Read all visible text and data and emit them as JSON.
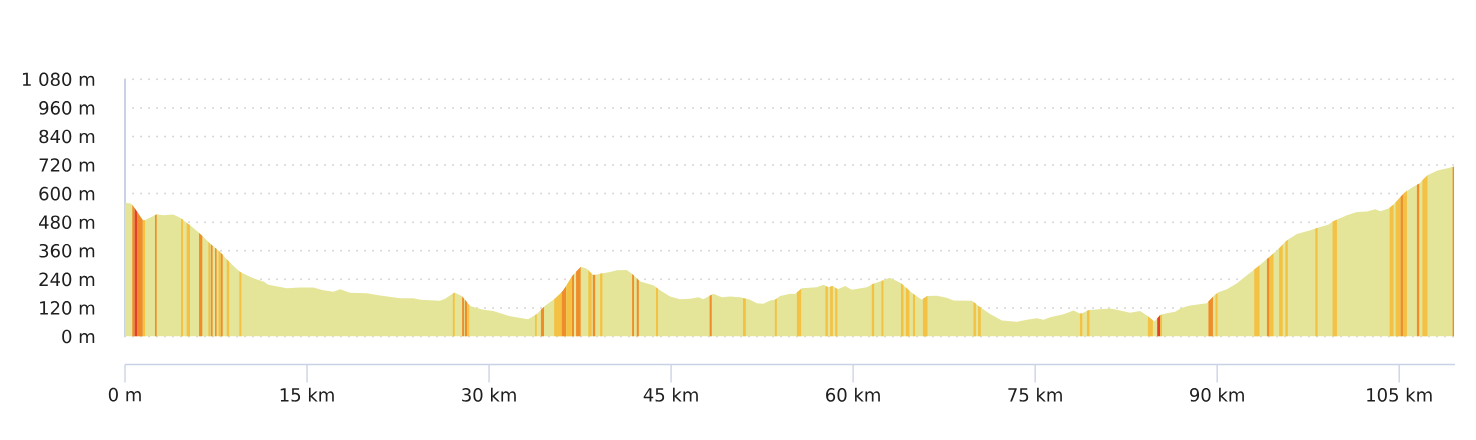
{
  "chart_data": {
    "type": "area",
    "xlim": [
      0,
      109.6
    ],
    "ylim": [
      0,
      1080
    ],
    "xticks": [
      {
        "value": 0,
        "label": "0 m"
      },
      {
        "value": 15,
        "label": "15 km"
      },
      {
        "value": 30,
        "label": "30 km"
      },
      {
        "value": 45,
        "label": "45 km"
      },
      {
        "value": 60,
        "label": "60 km"
      },
      {
        "value": 75,
        "label": "75 km"
      },
      {
        "value": 90,
        "label": "90 km"
      },
      {
        "value": 105,
        "label": "105 km"
      }
    ],
    "yticks": [
      {
        "value": 0,
        "label": "0 m"
      },
      {
        "value": 120,
        "label": "120 m"
      },
      {
        "value": 240,
        "label": "240 m"
      },
      {
        "value": 360,
        "label": "360 m"
      },
      {
        "value": 480,
        "label": "480 m"
      },
      {
        "value": 600,
        "label": "600 m"
      },
      {
        "value": 720,
        "label": "720 m"
      },
      {
        "value": 840,
        "label": "840 m"
      },
      {
        "value": 960,
        "label": "960 m"
      },
      {
        "value": 1080,
        "label": "1 080 m"
      }
    ],
    "grid": "y",
    "series": [
      {
        "color": "#e5e599",
        "x": [
          0,
          0.47,
          0.68,
          1.51,
          2.61,
          3.16,
          3.98,
          4.53,
          5.36,
          6.18,
          7.01,
          7.83,
          8.65,
          9.48,
          10.57,
          11.4,
          11.81,
          13.33,
          14.42,
          15.52,
          16.34,
          17.17,
          17.72,
          18.54,
          19.92,
          21.02,
          22.67,
          23.76,
          24.31,
          25.96,
          26.37,
          27.14,
          27.75,
          28.43,
          29.53,
          30.35,
          31.73,
          33.22,
          33.93,
          34.62,
          35.58,
          36.13,
          36.82,
          37.56,
          38.05,
          38.6,
          39.15,
          39.97,
          40.53,
          41.35,
          41.89,
          42.45,
          43.54,
          44.09,
          44.92,
          45.74,
          46.57,
          47.25,
          47.66,
          48.22,
          48.49,
          49.18,
          49.86,
          50.69,
          51.51,
          52.06,
          52.61,
          53.16,
          53.57,
          53.98,
          54.81,
          55.22,
          55.77,
          57.01,
          57.56,
          57.97,
          58.33,
          58.74,
          59.34,
          59.89,
          61.13,
          61.67,
          62.5,
          62.99,
          63.6,
          64.01,
          64.7,
          65.66,
          66.07,
          66.9,
          67.72,
          68.27,
          69.79,
          70.47,
          71.29,
          72.26,
          73.49,
          74.32,
          75.14,
          75.69,
          76.24,
          77.34,
          78.16,
          78.77,
          79.4,
          80.36,
          81.18,
          81.73,
          82.83,
          83.65,
          84.21,
          84.83,
          85.3,
          85.85,
          86.54,
          87.09,
          87.78,
          89.15,
          89.7,
          90.11,
          90.8,
          91.63,
          92.45,
          93.28,
          94.1,
          94.92,
          95.75,
          96.57,
          97.67,
          98.49,
          99.18,
          99.59,
          100.69,
          101.52,
          102.34,
          103.03,
          103.44,
          104.12,
          104.54,
          105.36,
          106.05,
          106.66,
          107.33,
          108.15,
          108.98,
          109.52
        ],
        "values": [
          562,
          558,
          548,
          485,
          513,
          509,
          512,
          499,
          467,
          432,
          390,
          355,
          310,
          271,
          245,
          231,
          217,
          203,
          206,
          206,
          194,
          188,
          198,
          184,
          182,
          172,
          161,
          161,
          154,
          150,
          158,
          185,
          170,
          128,
          112,
          107,
          85,
          72,
          95,
          129,
          165,
          194,
          252,
          293,
          285,
          257,
          264,
          271,
          278,
          279,
          258,
          231,
          215,
          194,
          168,
          156,
          158,
          165,
          156,
          172,
          180,
          165,
          168,
          165,
          154,
          140,
          137,
          151,
          154,
          170,
          180,
          178,
          203,
          207,
          217,
          207,
          212,
          198,
          212,
          196,
          207,
          222,
          236,
          247,
          233,
          222,
          189,
          154,
          170,
          171,
          163,
          151,
          150,
          123,
          95,
          67,
          62,
          70,
          77,
          70,
          81,
          93,
          109,
          95,
          111,
          114,
          118,
          112,
          100,
          107,
          88,
          63,
          90,
          98,
          104,
          121,
          130,
          140,
          170,
          186,
          198,
          224,
          257,
          290,
          325,
          362,
          404,
          430,
          446,
          460,
          470,
          485,
          509,
          523,
          525,
          534,
          526,
          537,
          554,
          600,
          626,
          642,
          677,
          697,
          707,
          714
        ]
      },
      {
        "color": "#f3c245",
        "x": [
          1.46,
          1.65,
          1.67,
          4.62,
          4.8,
          4.82,
          5.08,
          5.36,
          5.38,
          6.87,
          7.01,
          7.03,
          7.69,
          7.89,
          7.91,
          8.38,
          8.59,
          8.61,
          9.42,
          9.59,
          9.61,
          27.01,
          27.17,
          27.19,
          28.27,
          28.38,
          28.4,
          33.79,
          33.93,
          33.95,
          35.36,
          35.99,
          36.01,
          36.35,
          36.82,
          36.84,
          38.18,
          38.46,
          38.48,
          39.15,
          39.34,
          39.36,
          43.74,
          43.93,
          43.95,
          50.91,
          51.16,
          51.18,
          53.55,
          53.71,
          53.73,
          55.36,
          55.72,
          55.74,
          57.72,
          57.92,
          57.94,
          58.11,
          58.33,
          58.35,
          58.52,
          58.71,
          58.73,
          61.54,
          61.73,
          61.75,
          62.33,
          62.5,
          62.52,
          63.93,
          64.15,
          64.17,
          64.35,
          64.64,
          64.66,
          64.92,
          65.11,
          65.13,
          65.75,
          66.13,
          66.15,
          69.92,
          70.12,
          70.14,
          70.3,
          70.52,
          70.54,
          78.69,
          78.9,
          78.92,
          79.26,
          79.48,
          79.5,
          84.29,
          84.7,
          84.72,
          85.3,
          85.46,
          85.48,
          89.85,
          90.04,
          90.06,
          93.05,
          93.49,
          93.51,
          94.29,
          94.64,
          94.66,
          95.1,
          95.4,
          95.42,
          95.62,
          95.82,
          95.84,
          98.09,
          98.28,
          98.3,
          99.51,
          99.87,
          99.89,
          104.21,
          104.54,
          104.56,
          104.7,
          105.12,
          105.14,
          105.31,
          105.64,
          105.66,
          106.91,
          107.33
        ],
        "values": [
          489,
          488,
          null,
          496,
          490,
          null,
          478,
          467,
          null,
          397,
          390,
          null,
          361,
          352,
          null,
          325,
          313,
          null,
          274,
          268,
          null,
          180,
          184,
          null,
          138,
          131,
          null,
          90,
          95,
          null,
          156,
          186,
          null,
          212,
          252,
          null,
          278,
          264,
          null,
          264,
          266,
          null,
          207,
          200,
          null,
          162,
          159,
          null,
          154,
          160,
          null,
          185,
          201,
          null,
          211,
          208,
          null,
          210,
          212,
          null,
          205,
          199,
          null,
          219,
          223,
          null,
          233,
          236,
          null,
          224,
          215,
          null,
          207,
          192,
          null,
          180,
          173,
          null,
          158,
          170,
          null,
          145,
          137,
          null,
          129,
          121,
          null,
          97,
          98,
          null,
          107,
          111,
          null,
          85,
          68,
          null,
          90,
          92,
          null,
          176,
          183,
          null,
          281,
          299,
          null,
          333,
          349,
          null,
          370,
          386,
          null,
          397,
          406,
          null,
          453,
          456,
          null,
          482,
          491,
          null,
          541,
          554,
          null,
          563,
          587,
          null,
          597,
          613,
          null,
          656,
          677
        ]
      },
      {
        "color": "#ef8d2b",
        "x": [
          0.6,
          0.79,
          0.8,
          1.01,
          1.46,
          1.48,
          2.47,
          2.61,
          2.63,
          6.1,
          6.37,
          6.39,
          7.06,
          7.23,
          7.25,
          7.42,
          7.56,
          7.58,
          7.89,
          8.05,
          8.07,
          27.78,
          27.94,
          27.96,
          28.0,
          28.21,
          28.23,
          34.26,
          34.53,
          34.55,
          35.99,
          36.35,
          36.37,
          36.82,
          37.0,
          37.02,
          37.17,
          37.56,
          37.58,
          38.55,
          38.76,
          38.78,
          41.79,
          41.95,
          41.97,
          42.17,
          42.34,
          42.36,
          48.16,
          48.35,
          48.37,
          89.28,
          89.65,
          89.67,
          94.1,
          94.29,
          94.31,
          105.12,
          105.31,
          105.33,
          106.46,
          106.65,
          106.67,
          109.4,
          109.52
        ],
        "values": [
          552,
          540,
          null,
          523,
          489,
          null,
          509,
          513,
          null,
          435,
          422,
          null,
          388,
          380,
          null,
          373,
          367,
          null,
          352,
          343,
          null,
          168,
          160,
          null,
          156,
          142,
          null,
          111,
          125,
          null,
          186,
          212,
          null,
          252,
          262,
          null,
          272,
          293,
          null,
          259,
          259,
          null,
          262,
          255,
          null,
          245,
          236,
          null,
          170,
          176,
          null,
          147,
          167,
          null,
          325,
          333,
          null,
          587,
          597,
          null,
          637,
          642,
          null,
          711,
          714
        ]
      },
      {
        "color": "#e3412b",
        "x": [
          0.79,
          1.01,
          1.03,
          85.06,
          85.3
        ],
        "values": [
          540,
          523,
          null,
          76,
          90
        ]
      }
    ]
  }
}
